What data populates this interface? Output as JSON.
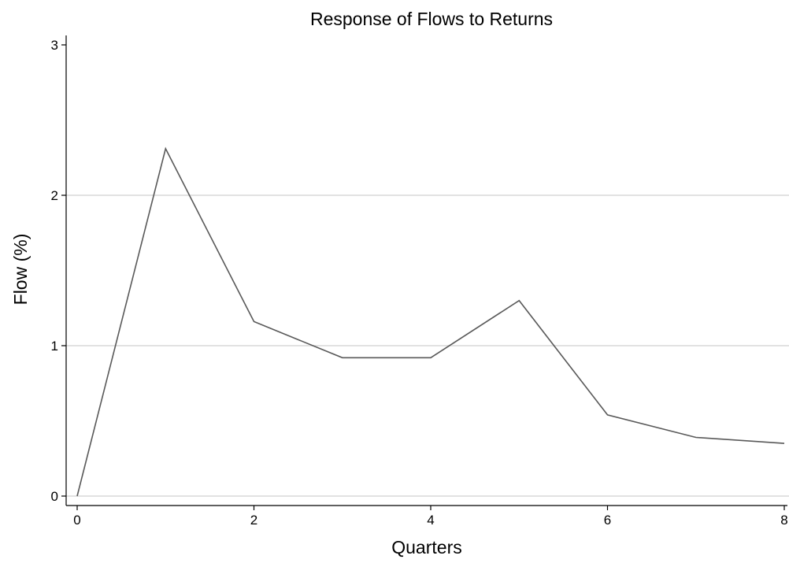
{
  "chart_data": {
    "type": "line",
    "title": "Response of Flows to Returns",
    "xlabel": "Quarters",
    "ylabel": "Flow (%)",
    "xlim": [
      0,
      8
    ],
    "ylim": [
      0,
      3
    ],
    "xticks": [
      0,
      2,
      4,
      6,
      8
    ],
    "yticks": [
      0,
      1,
      2,
      3
    ],
    "grid": "horizontal",
    "colors": {
      "line": "#595959",
      "grid": "#d9d9d9"
    },
    "series": [
      {
        "x": [
          0,
          1,
          2,
          3,
          4,
          5,
          6,
          7,
          8
        ],
        "values": [
          0,
          2.31,
          1.16,
          0.92,
          0.92,
          1.3,
          0.54,
          0.39,
          0.35
        ]
      }
    ]
  }
}
